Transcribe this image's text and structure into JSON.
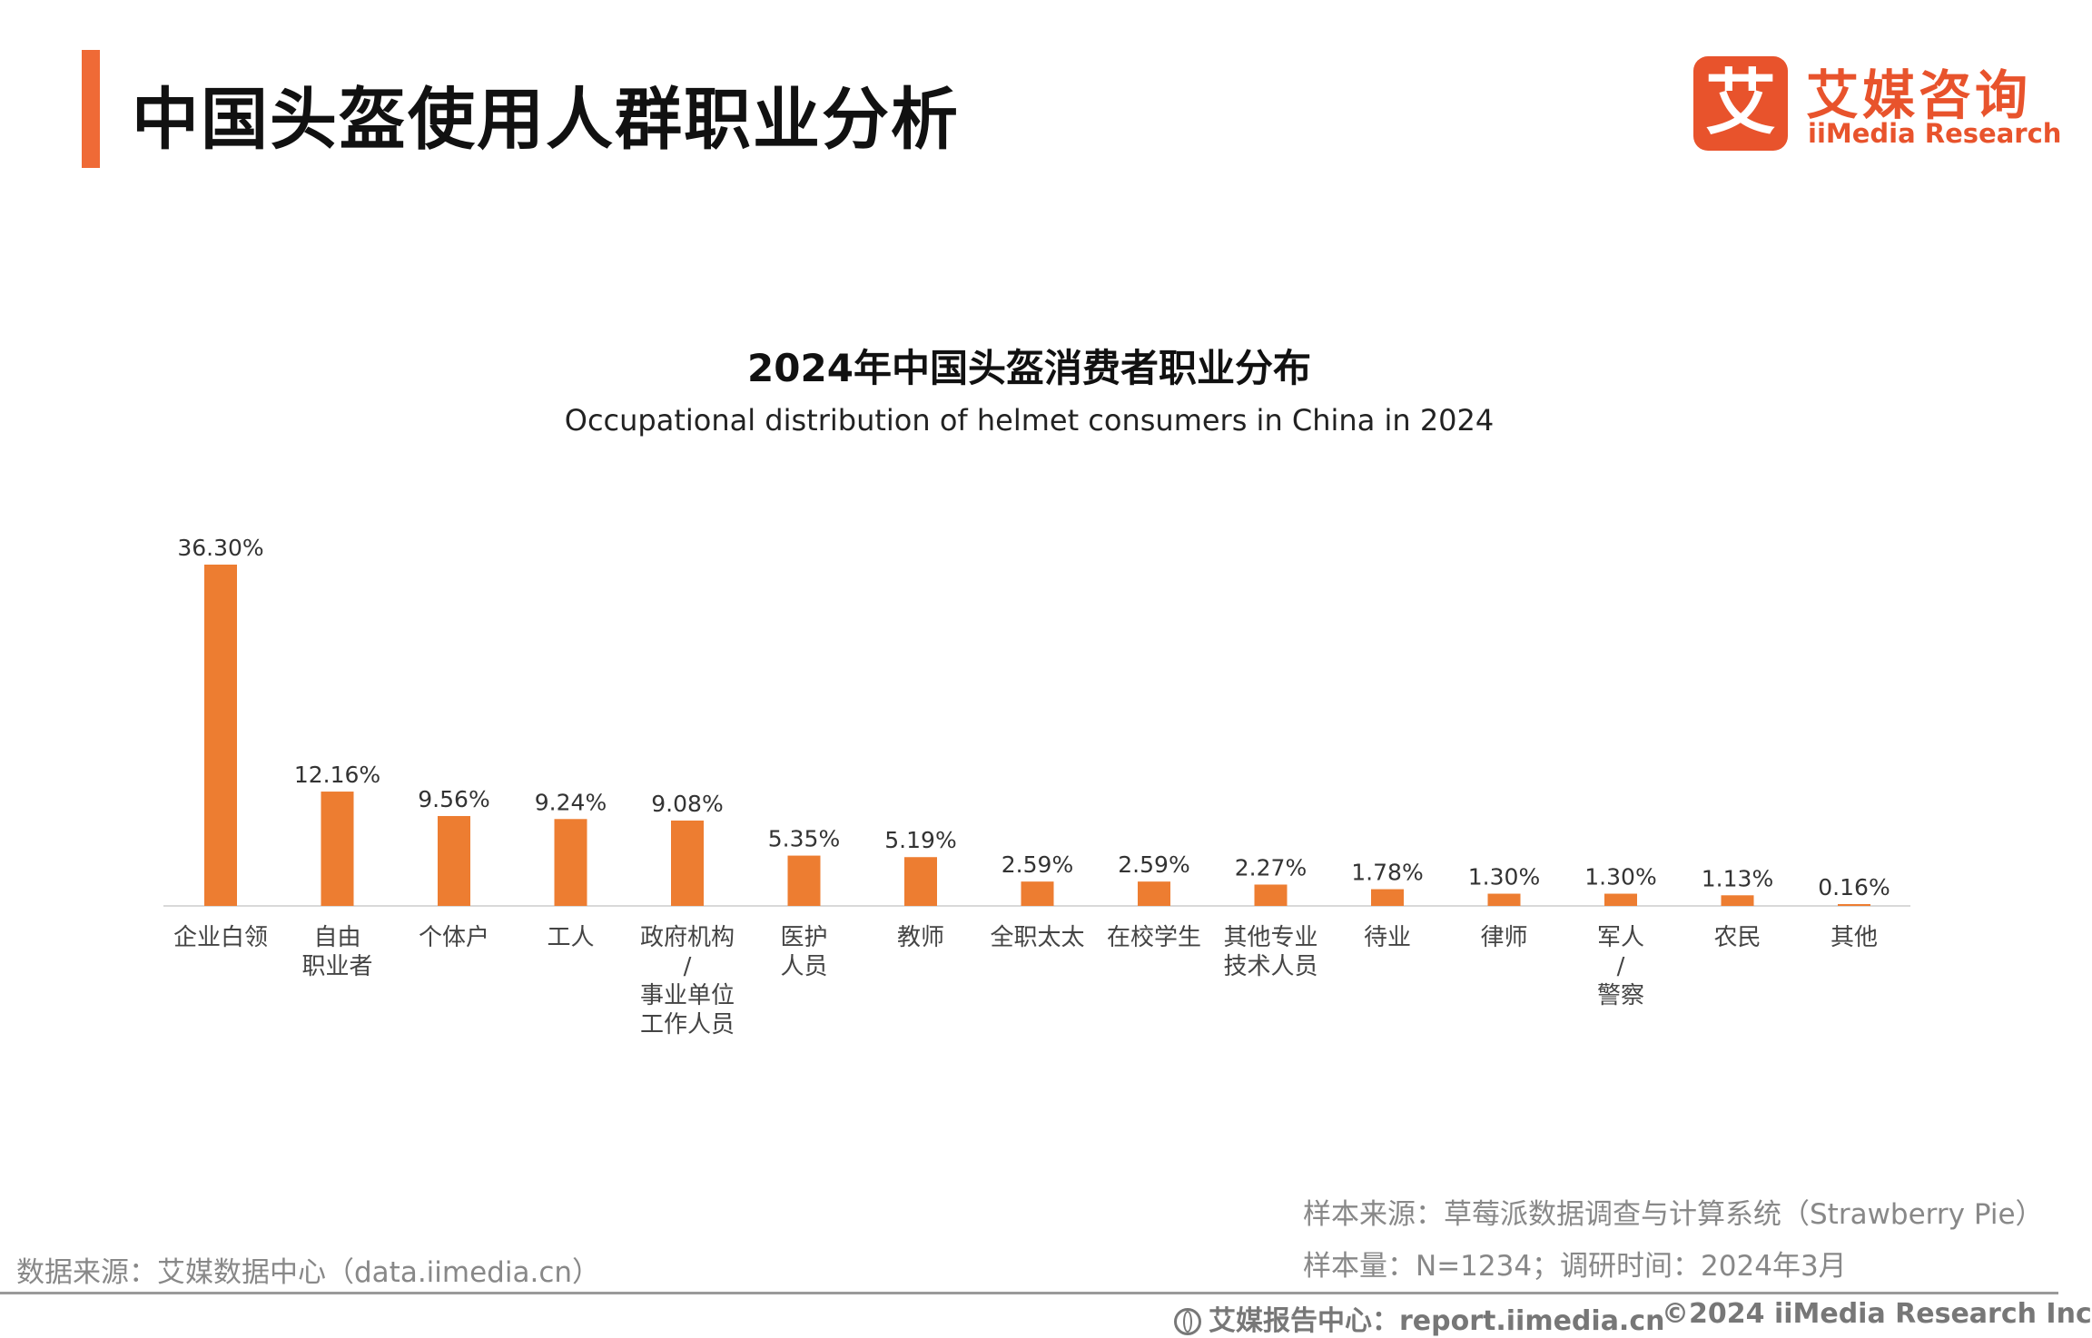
{
  "header": {
    "title": "中国头盔使用人群职业分析"
  },
  "logo": {
    "mark_char": "艾",
    "name_cn": "艾媒咨询",
    "name_en": "iiMedia Research",
    "color": "#e8532c"
  },
  "chart_data": {
    "type": "bar",
    "title": "2024年中国头盔消费者职业分布",
    "subtitle": "Occupational distribution of helmet consumers in China in 2024",
    "categories": [
      [
        "企业白领"
      ],
      [
        "自由",
        "职业者"
      ],
      [
        "个体户"
      ],
      [
        "工人"
      ],
      [
        "政府机构",
        "/",
        "事业单位",
        "工作人员"
      ],
      [
        "医护",
        "人员"
      ],
      [
        "教师"
      ],
      [
        "全职太太"
      ],
      [
        "在校学生"
      ],
      [
        "其他专业",
        "技术人员"
      ],
      [
        "待业"
      ],
      [
        "律师"
      ],
      [
        "军人",
        "/",
        "警察"
      ],
      [
        "农民"
      ],
      [
        "其他"
      ]
    ],
    "values": [
      36.3,
      12.16,
      9.56,
      9.24,
      9.08,
      5.35,
      5.19,
      2.59,
      2.59,
      2.27,
      1.78,
      1.3,
      1.3,
      1.13,
      0.16
    ],
    "value_labels": [
      "36.30%",
      "12.16%",
      "9.56%",
      "9.24%",
      "9.08%",
      "5.35%",
      "5.19%",
      "2.59%",
      "2.59%",
      "2.27%",
      "1.78%",
      "1.30%",
      "1.30%",
      "1.13%",
      "0.16%"
    ],
    "unit": "%",
    "bar_color": "#ed7d31",
    "axis_color": "#d9d9d9",
    "grid": false,
    "legend": "none"
  },
  "notes": {
    "sample_source": "样本来源：草莓派数据调查与计算系统（Strawberry Pie）",
    "sample_size": "样本量：N=1234；调研时间：2024年3月",
    "data_source": "数据来源：艾媒数据中心（data.iimedia.cn）"
  },
  "footer": {
    "report_center": "艾媒报告中心：report.iimedia.cn",
    "copyright": "©2024  iiMedia Research  Inc"
  }
}
